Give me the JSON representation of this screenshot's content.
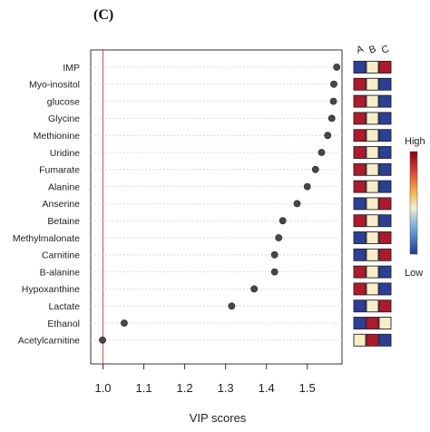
{
  "panel_label": "(C)",
  "chart_data": {
    "type": "scatter",
    "xlabel": "VIP scores",
    "xlim": [
      0.97,
      1.585
    ],
    "xticks": [
      "1.0",
      "1.1",
      "1.2",
      "1.3",
      "1.4",
      "1.5"
    ],
    "xtick_values": [
      1.0,
      1.1,
      1.2,
      1.3,
      1.4,
      1.5
    ],
    "reference_line_x": 1.0,
    "reference_line_color": "#d62020",
    "point_color": "#474747",
    "metabolites": [
      {
        "name": "IMP",
        "vip": 1.572,
        "levels": [
          "low",
          "mid",
          "high"
        ]
      },
      {
        "name": "Myo-inositol",
        "vip": 1.565,
        "levels": [
          "high",
          "mid",
          "low"
        ]
      },
      {
        "name": "glucose",
        "vip": 1.564,
        "levels": [
          "high",
          "mid",
          "low"
        ]
      },
      {
        "name": "Glycine",
        "vip": 1.56,
        "levels": [
          "high",
          "mid",
          "low"
        ]
      },
      {
        "name": "Methionine",
        "vip": 1.55,
        "levels": [
          "high",
          "mid",
          "low"
        ]
      },
      {
        "name": "Uridine",
        "vip": 1.535,
        "levels": [
          "high",
          "mid",
          "low"
        ]
      },
      {
        "name": "Fumarate",
        "vip": 1.52,
        "levels": [
          "high",
          "mid",
          "low"
        ]
      },
      {
        "name": "Alanine",
        "vip": 1.5,
        "levels": [
          "high",
          "mid",
          "low"
        ]
      },
      {
        "name": "Anserine",
        "vip": 1.475,
        "levels": [
          "low",
          "mid",
          "high"
        ]
      },
      {
        "name": "Betaine",
        "vip": 1.44,
        "levels": [
          "high",
          "mid",
          "low"
        ]
      },
      {
        "name": "Methylmalonate",
        "vip": 1.43,
        "levels": [
          "low",
          "mid",
          "high"
        ]
      },
      {
        "name": "Carnitine",
        "vip": 1.42,
        "levels": [
          "low",
          "mid",
          "high"
        ]
      },
      {
        "name": "B-alanine",
        "vip": 1.42,
        "levels": [
          "high",
          "mid",
          "low"
        ]
      },
      {
        "name": "Hypoxanthine",
        "vip": 1.37,
        "levels": [
          "high",
          "mid",
          "low"
        ]
      },
      {
        "name": "Lactate",
        "vip": 1.315,
        "levels": [
          "low",
          "mid",
          "high"
        ]
      },
      {
        "name": "Ethanol",
        "vip": 1.052,
        "levels": [
          "low",
          "high",
          "mid"
        ]
      },
      {
        "name": "Acetylcarnitine",
        "vip": 0.999,
        "levels": [
          "mid",
          "high",
          "low"
        ]
      }
    ],
    "heatmap_columns": [
      "A",
      "B",
      "C"
    ],
    "heatmap_colors": {
      "high": "#b2182b",
      "mid": "#f7eec8",
      "low": "#2b3f9a"
    },
    "legend": {
      "high_label": "High",
      "low_label": "Low",
      "placement": "right"
    },
    "grid": "horizontal-dotted"
  }
}
